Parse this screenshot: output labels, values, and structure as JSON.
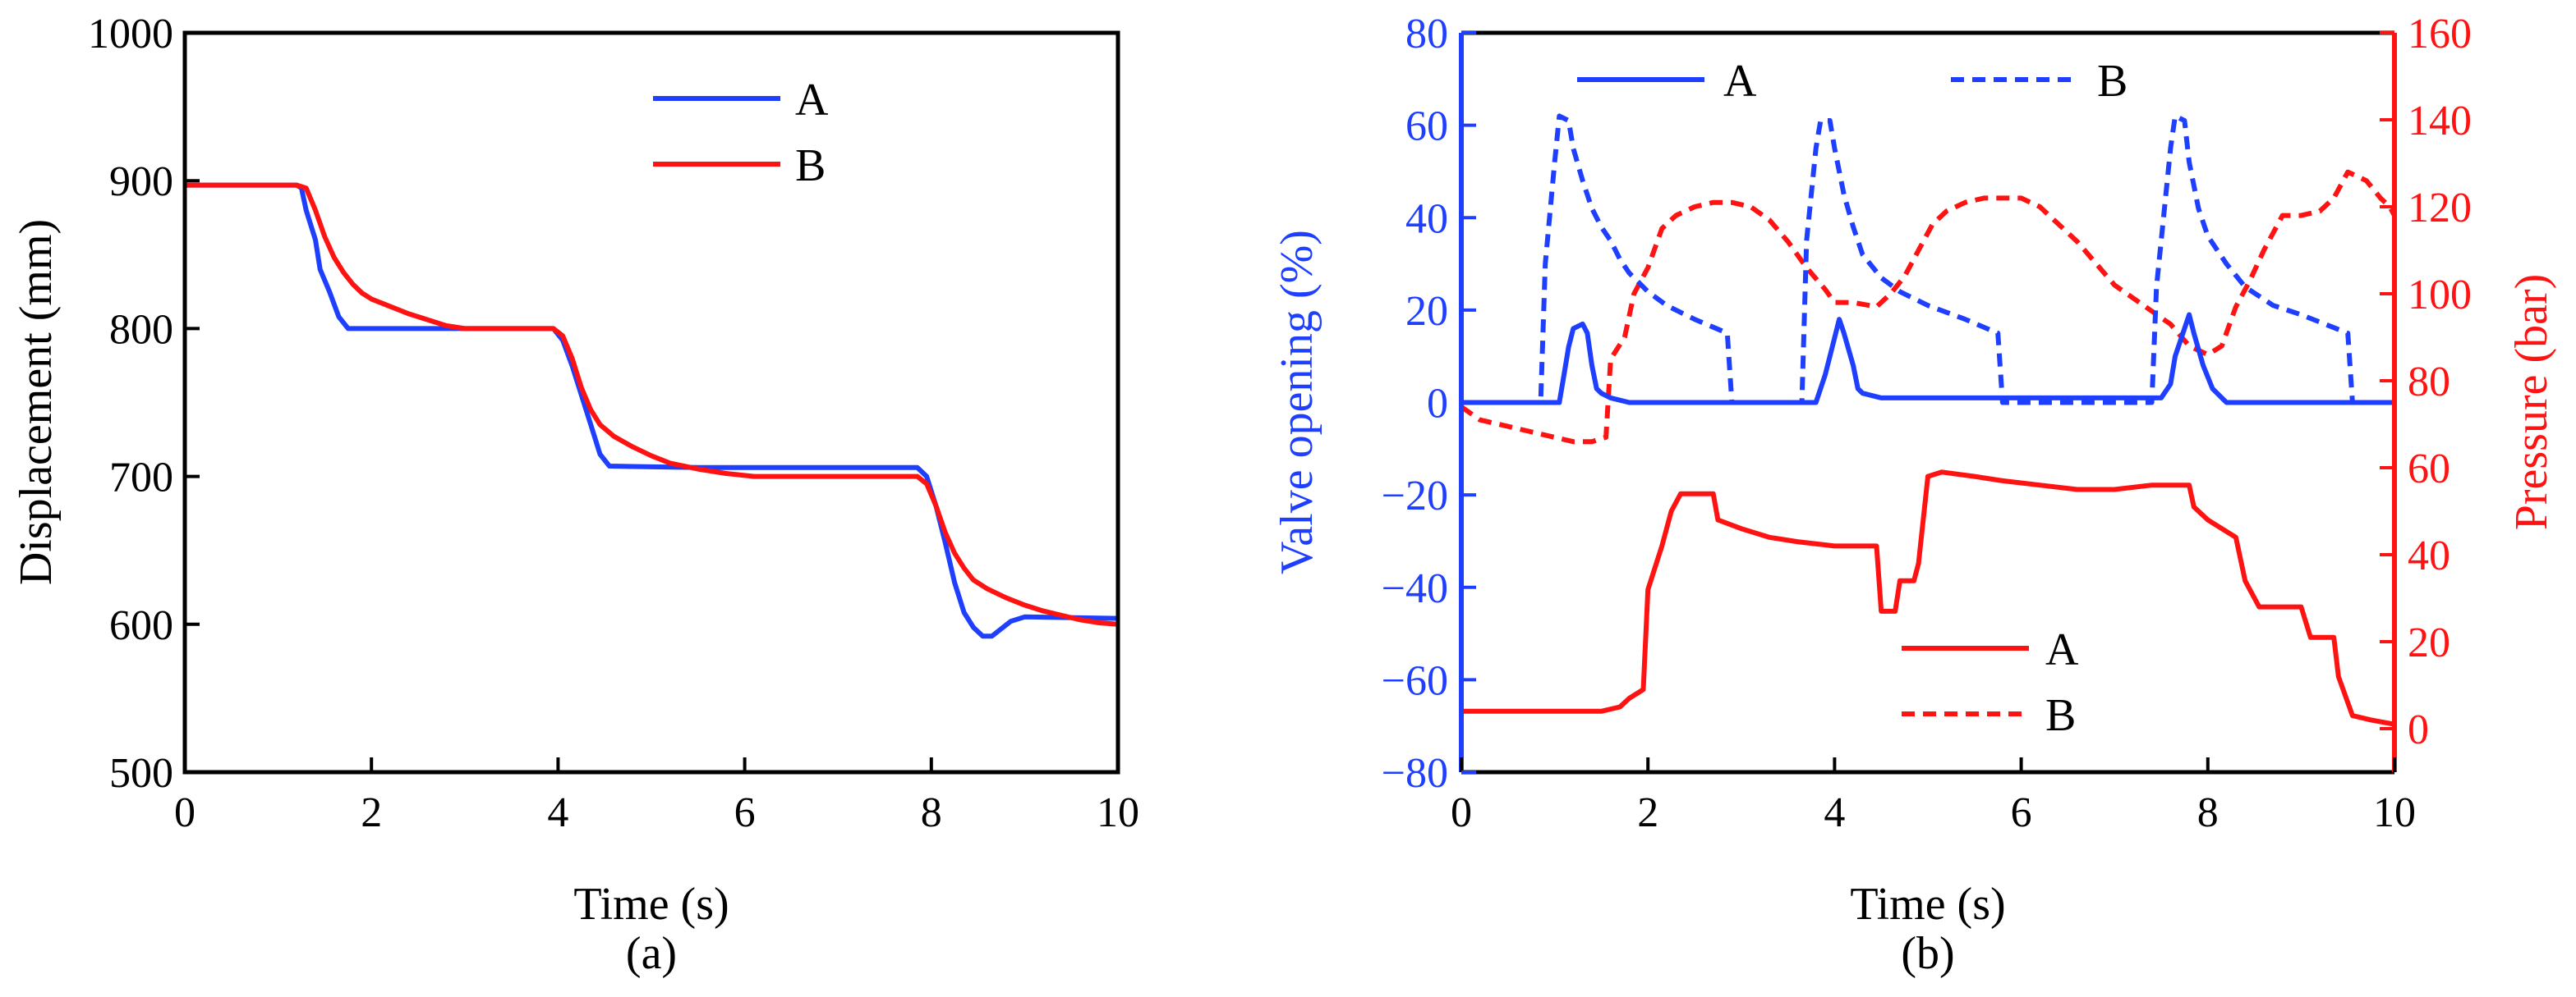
{
  "colors": {
    "blue": "#1f3fff",
    "red": "#ff1212",
    "black": "#000000"
  },
  "chart_data": [
    {
      "id": "a",
      "type": "line",
      "caption": "(a)",
      "xlabel": "Time (s)",
      "ylabel": "Displacement (mm)",
      "xlim": [
        0,
        10
      ],
      "ylim": [
        500,
        1000
      ],
      "xticks": [
        0,
        2,
        4,
        6,
        8,
        10
      ],
      "yticks": [
        500,
        600,
        700,
        800,
        900,
        1000
      ],
      "legend_position": "top-center",
      "series": [
        {
          "name": "A",
          "color": "#1f3fff",
          "dash": "solid",
          "points": [
            [
              0,
              897
            ],
            [
              1.2,
              897
            ],
            [
              1.25,
              895
            ],
            [
              1.3,
              880
            ],
            [
              1.4,
              860
            ],
            [
              1.45,
              840
            ],
            [
              1.55,
              825
            ],
            [
              1.65,
              808
            ],
            [
              1.75,
              800
            ],
            [
              2.5,
              800
            ],
            [
              3.5,
              800
            ],
            [
              3.95,
              800
            ],
            [
              4.05,
              792
            ],
            [
              4.15,
              775
            ],
            [
              4.25,
              755
            ],
            [
              4.35,
              735
            ],
            [
              4.45,
              715
            ],
            [
              4.55,
              707
            ],
            [
              5.5,
              706
            ],
            [
              7.0,
              706
            ],
            [
              7.85,
              706
            ],
            [
              7.95,
              700
            ],
            [
              8.05,
              680
            ],
            [
              8.15,
              655
            ],
            [
              8.25,
              628
            ],
            [
              8.35,
              608
            ],
            [
              8.45,
              598
            ],
            [
              8.55,
              592
            ],
            [
              8.65,
              592
            ],
            [
              8.75,
              597
            ],
            [
              8.85,
              602
            ],
            [
              9.0,
              605
            ],
            [
              10,
              604
            ]
          ]
        },
        {
          "name": "B",
          "color": "#ff1212",
          "dash": "solid",
          "points": [
            [
              0,
              897
            ],
            [
              1.2,
              897
            ],
            [
              1.3,
              895
            ],
            [
              1.4,
              880
            ],
            [
              1.5,
              862
            ],
            [
              1.6,
              848
            ],
            [
              1.7,
              838
            ],
            [
              1.8,
              830
            ],
            [
              1.9,
              824
            ],
            [
              2.0,
              820
            ],
            [
              2.2,
              815
            ],
            [
              2.4,
              810
            ],
            [
              2.6,
              806
            ],
            [
              2.8,
              802
            ],
            [
              3.0,
              800
            ],
            [
              3.5,
              800
            ],
            [
              3.95,
              800
            ],
            [
              4.05,
              795
            ],
            [
              4.15,
              780
            ],
            [
              4.25,
              760
            ],
            [
              4.35,
              745
            ],
            [
              4.45,
              735
            ],
            [
              4.6,
              727
            ],
            [
              4.8,
              720
            ],
            [
              5.0,
              714
            ],
            [
              5.2,
              709
            ],
            [
              5.5,
              705
            ],
            [
              5.8,
              702
            ],
            [
              6.1,
              700
            ],
            [
              7.0,
              700
            ],
            [
              7.85,
              700
            ],
            [
              7.95,
              695
            ],
            [
              8.05,
              680
            ],
            [
              8.15,
              662
            ],
            [
              8.25,
              648
            ],
            [
              8.35,
              638
            ],
            [
              8.45,
              630
            ],
            [
              8.6,
              624
            ],
            [
              8.8,
              618
            ],
            [
              9.0,
              613
            ],
            [
              9.2,
              609
            ],
            [
              9.4,
              606
            ],
            [
              9.6,
              603
            ],
            [
              9.8,
              601
            ],
            [
              10,
              600
            ]
          ]
        }
      ]
    },
    {
      "id": "b",
      "type": "line",
      "caption": "(b)",
      "xlabel": "Time (s)",
      "ylabel_left": "Valve opening (%)",
      "ylabel_right": "Pressure (bar)",
      "xlim": [
        0,
        10
      ],
      "ylim_left": [
        -80,
        80
      ],
      "ylim_right": [
        -10,
        160
      ],
      "xticks": [
        0,
        2,
        4,
        6,
        8,
        10
      ],
      "yticks_left": [
        -80,
        -60,
        -40,
        -20,
        0,
        20,
        40,
        60,
        80
      ],
      "yticks_right": [
        0,
        20,
        40,
        60,
        80,
        100,
        120,
        140,
        160
      ],
      "legend_valve": {
        "position": "top",
        "entries": [
          "A",
          "B"
        ]
      },
      "legend_pressure": {
        "position": "lower-right",
        "entries": [
          "A",
          "B"
        ]
      },
      "valve_series": [
        {
          "name": "A",
          "color": "#1f3fff",
          "dash": "solid",
          "axis": "left",
          "points": [
            [
              0,
              0
            ],
            [
              1.05,
              0
            ],
            [
              1.1,
              6
            ],
            [
              1.15,
              12
            ],
            [
              1.2,
              16
            ],
            [
              1.3,
              17
            ],
            [
              1.35,
              15
            ],
            [
              1.4,
              8
            ],
            [
              1.45,
              3
            ],
            [
              1.5,
              2
            ],
            [
              1.6,
              1
            ],
            [
              1.8,
              0
            ],
            [
              3.8,
              0
            ],
            [
              3.9,
              6
            ],
            [
              4.0,
              14
            ],
            [
              4.05,
              18
            ],
            [
              4.1,
              15
            ],
            [
              4.2,
              8
            ],
            [
              4.25,
              3
            ],
            [
              4.3,
              2
            ],
            [
              4.5,
              1
            ],
            [
              5.75,
              1
            ],
            [
              7.5,
              1
            ],
            [
              7.6,
              4
            ],
            [
              7.65,
              10
            ],
            [
              7.8,
              19
            ],
            [
              7.85,
              15
            ],
            [
              7.95,
              8
            ],
            [
              8.05,
              3
            ],
            [
              8.15,
              1
            ],
            [
              8.2,
              0
            ],
            [
              10,
              0
            ]
          ]
        },
        {
          "name": "B",
          "color": "#1f3fff",
          "dash": "dash",
          "axis": "left",
          "points": [
            [
              0,
              0
            ],
            [
              0.85,
              0
            ],
            [
              0.9,
              30
            ],
            [
              1.0,
              52
            ],
            [
              1.05,
              62
            ],
            [
              1.15,
              61
            ],
            [
              1.2,
              55
            ],
            [
              1.3,
              48
            ],
            [
              1.4,
              42
            ],
            [
              1.5,
              38
            ],
            [
              1.6,
              35
            ],
            [
              1.7,
              31
            ],
            [
              1.8,
              28
            ],
            [
              2.0,
              24
            ],
            [
              2.2,
              21
            ],
            [
              2.5,
              18
            ],
            [
              2.85,
              15
            ],
            [
              2.9,
              0
            ],
            [
              3.65,
              0
            ],
            [
              3.7,
              35
            ],
            [
              3.8,
              55
            ],
            [
              3.85,
              61
            ],
            [
              3.95,
              61
            ],
            [
              4.0,
              55
            ],
            [
              4.1,
              45
            ],
            [
              4.2,
              38
            ],
            [
              4.3,
              32
            ],
            [
              4.5,
              27
            ],
            [
              4.7,
              24
            ],
            [
              5.0,
              21
            ],
            [
              5.4,
              18
            ],
            [
              5.75,
              15
            ],
            [
              5.8,
              0
            ],
            [
              7.4,
              0
            ],
            [
              7.45,
              25
            ],
            [
              7.6,
              55
            ],
            [
              7.65,
              62
            ],
            [
              7.75,
              61
            ],
            [
              7.8,
              52
            ],
            [
              7.9,
              42
            ],
            [
              8.0,
              36
            ],
            [
              8.2,
              30
            ],
            [
              8.4,
              25
            ],
            [
              8.7,
              21
            ],
            [
              9.0,
              19
            ],
            [
              9.5,
              15
            ],
            [
              9.55,
              0
            ],
            [
              10,
              0
            ]
          ]
        }
      ],
      "pressure_series": [
        {
          "name": "A",
          "color": "#ff1212",
          "dash": "solid",
          "axis": "right",
          "points": [
            [
              0,
              4
            ],
            [
              1.5,
              4
            ],
            [
              1.7,
              5
            ],
            [
              1.8,
              7
            ],
            [
              1.95,
              9
            ],
            [
              2.0,
              32
            ],
            [
              2.15,
              42
            ],
            [
              2.25,
              50
            ],
            [
              2.35,
              54
            ],
            [
              2.7,
              54
            ],
            [
              2.75,
              48
            ],
            [
              3.0,
              46
            ],
            [
              3.3,
              44
            ],
            [
              3.6,
              43
            ],
            [
              4.0,
              42
            ],
            [
              4.3,
              42
            ],
            [
              4.45,
              42
            ],
            [
              4.5,
              27
            ],
            [
              4.65,
              27
            ],
            [
              4.7,
              34
            ],
            [
              4.85,
              34
            ],
            [
              4.9,
              38
            ],
            [
              5.0,
              58
            ],
            [
              5.15,
              59
            ],
            [
              5.5,
              58
            ],
            [
              5.8,
              57
            ],
            [
              6.2,
              56
            ],
            [
              6.6,
              55
            ],
            [
              7.0,
              55
            ],
            [
              7.4,
              56
            ],
            [
              7.8,
              56
            ],
            [
              7.85,
              51
            ],
            [
              8.0,
              48
            ],
            [
              8.3,
              44
            ],
            [
              8.4,
              34
            ],
            [
              8.55,
              28
            ],
            [
              8.8,
              28
            ],
            [
              9.0,
              28
            ],
            [
              9.1,
              21
            ],
            [
              9.35,
              21
            ],
            [
              9.4,
              12
            ],
            [
              9.55,
              3
            ],
            [
              9.75,
              2
            ],
            [
              10,
              1
            ]
          ]
        },
        {
          "name": "B",
          "color": "#ff1212",
          "dash": "dash",
          "axis": "right",
          "points": [
            [
              0,
              74
            ],
            [
              0.2,
              71
            ],
            [
              0.4,
              70
            ],
            [
              0.6,
              69
            ],
            [
              0.8,
              68
            ],
            [
              1.0,
              67
            ],
            [
              1.2,
              66
            ],
            [
              1.4,
              66
            ],
            [
              1.55,
              67
            ],
            [
              1.6,
              85
            ],
            [
              1.75,
              90
            ],
            [
              1.85,
              100
            ],
            [
              2.0,
              106
            ],
            [
              2.15,
              115
            ],
            [
              2.3,
              118
            ],
            [
              2.5,
              120
            ],
            [
              2.7,
              121
            ],
            [
              2.9,
              121
            ],
            [
              3.1,
              120
            ],
            [
              3.3,
              117
            ],
            [
              3.5,
              112
            ],
            [
              3.7,
              106
            ],
            [
              3.9,
              101
            ],
            [
              4.0,
              98
            ],
            [
              4.2,
              98
            ],
            [
              4.45,
              97
            ],
            [
              4.6,
              100
            ],
            [
              4.75,
              104
            ],
            [
              4.9,
              110
            ],
            [
              5.05,
              116
            ],
            [
              5.2,
              119
            ],
            [
              5.4,
              121
            ],
            [
              5.6,
              122
            ],
            [
              5.8,
              122
            ],
            [
              6.0,
              122
            ],
            [
              6.2,
              120
            ],
            [
              6.4,
              116
            ],
            [
              6.6,
              112
            ],
            [
              6.8,
              107
            ],
            [
              7.0,
              102
            ],
            [
              7.2,
              99
            ],
            [
              7.4,
              96
            ],
            [
              7.6,
              93
            ],
            [
              7.8,
              88
            ],
            [
              8.0,
              86
            ],
            [
              8.15,
              88
            ],
            [
              8.3,
              97
            ],
            [
              8.45,
              103
            ],
            [
              8.6,
              110
            ],
            [
              8.8,
              118
            ],
            [
              9.0,
              118
            ],
            [
              9.2,
              119
            ],
            [
              9.35,
              122
            ],
            [
              9.5,
              128
            ],
            [
              9.7,
              126
            ],
            [
              9.85,
              122
            ],
            [
              9.95,
              120
            ],
            [
              10,
              118
            ]
          ]
        }
      ]
    }
  ]
}
